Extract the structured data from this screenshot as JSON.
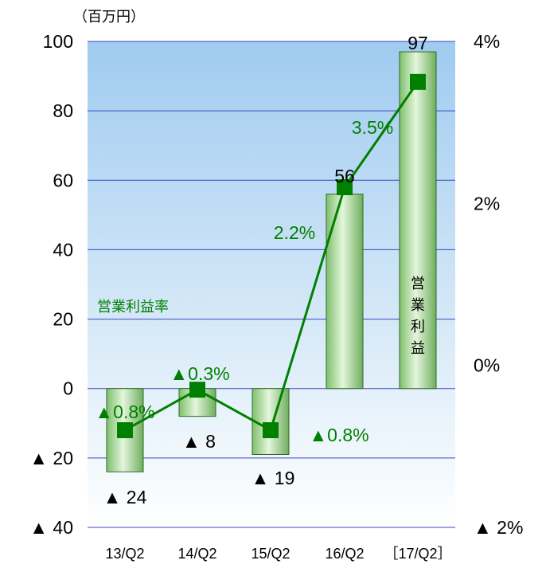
{
  "chart_data": {
    "type": "bar",
    "unit_label": "（百万円）",
    "categories": [
      "13/Q2",
      "14/Q2",
      "15/Q2",
      "16/Q2",
      "［17/Q2］"
    ],
    "y_left": {
      "range": [
        -40,
        100
      ],
      "ticks": [
        100,
        80,
        60,
        40,
        20,
        0,
        -20,
        -40
      ],
      "tick_labels": [
        "100",
        "80",
        "60",
        "40",
        "20",
        "0",
        "▲ 20",
        "▲ 40"
      ]
    },
    "y_right": {
      "range_percent": [
        -2,
        4
      ],
      "ticks": [
        4,
        2,
        0,
        -2
      ],
      "tick_labels": [
        "4%",
        "2%",
        "0%",
        "▲ 2%"
      ]
    },
    "series": [
      {
        "name": "営業利益",
        "kind": "bar",
        "values": [
          -24,
          -8,
          -19,
          56,
          97
        ],
        "value_labels": [
          "▲ 24",
          "▲ 8",
          "▲ 19",
          "56",
          "97"
        ]
      },
      {
        "name": "営業利益率",
        "kind": "line",
        "axis": "right",
        "values": [
          -0.8,
          -0.3,
          -0.8,
          2.2,
          3.5
        ],
        "value_labels": [
          "▲0.8%",
          "▲0.3%",
          "▲0.8%",
          "2.2%",
          "3.5%"
        ]
      }
    ],
    "grid": true,
    "colors": {
      "bar_fill": "#a8d89a",
      "bar_stroke": "#2e6b22",
      "line": "#008000",
      "text": "#000000",
      "gridline": "#3d46c8",
      "plot_bg_top": "#9fcbf0",
      "plot_bg_bottom": "#ffffff"
    }
  }
}
